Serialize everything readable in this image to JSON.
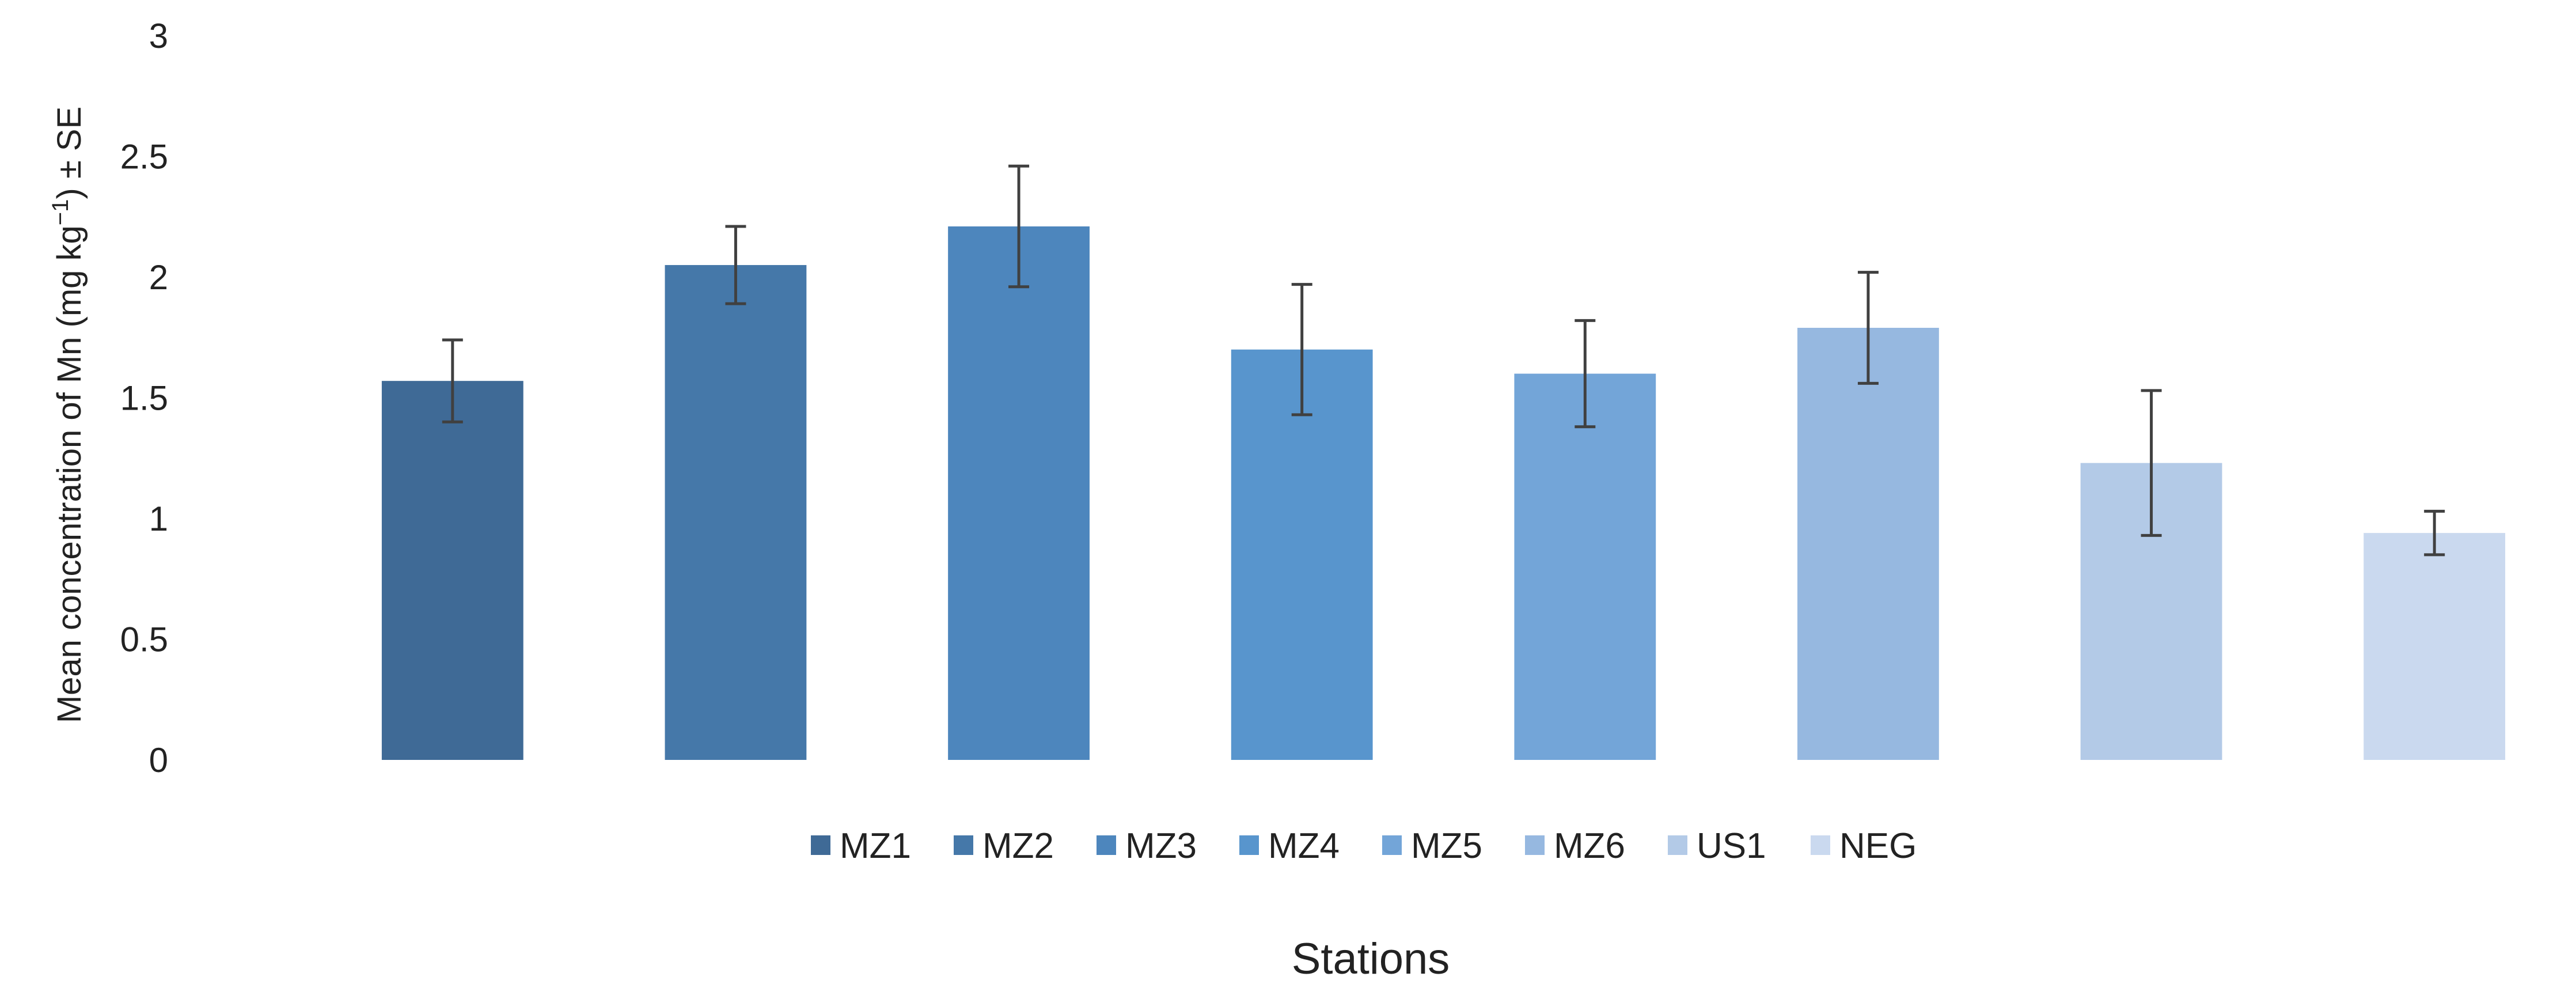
{
  "chart_data": {
    "type": "bar",
    "categories": [
      "MZ1",
      "MZ2",
      "MZ3",
      "MZ4",
      "MZ5",
      "MZ6",
      "US1",
      "NEG"
    ],
    "values": [
      1.57,
      2.05,
      2.21,
      1.7,
      1.6,
      1.79,
      1.23,
      0.94
    ],
    "errors": [
      0.17,
      0.16,
      0.25,
      0.27,
      0.22,
      0.23,
      0.3,
      0.09
    ],
    "colors": [
      "#3F6A96",
      "#4578A9",
      "#4D86BD",
      "#5895CD",
      "#73A5D8",
      "#96B8E0",
      "#B3CAE7",
      "#CAD9EF"
    ],
    "error_bar_color": "#404040",
    "xlabel": "Stations",
    "ylabel_parts": {
      "before": "Mean concentration of Mn  (mg kg",
      "superscript": "−1",
      "after": ") ± SE"
    },
    "ylim": [
      0,
      3
    ],
    "yticks": [
      "0",
      "0.5",
      "1",
      "1.5",
      "2",
      "2.5",
      "3"
    ],
    "grid": false,
    "legend": {
      "position": "bottom",
      "labels": [
        "MZ1",
        "MZ2",
        "MZ3",
        "MZ4",
        "MZ5",
        "MZ6",
        "US1",
        "NEG"
      ]
    }
  }
}
